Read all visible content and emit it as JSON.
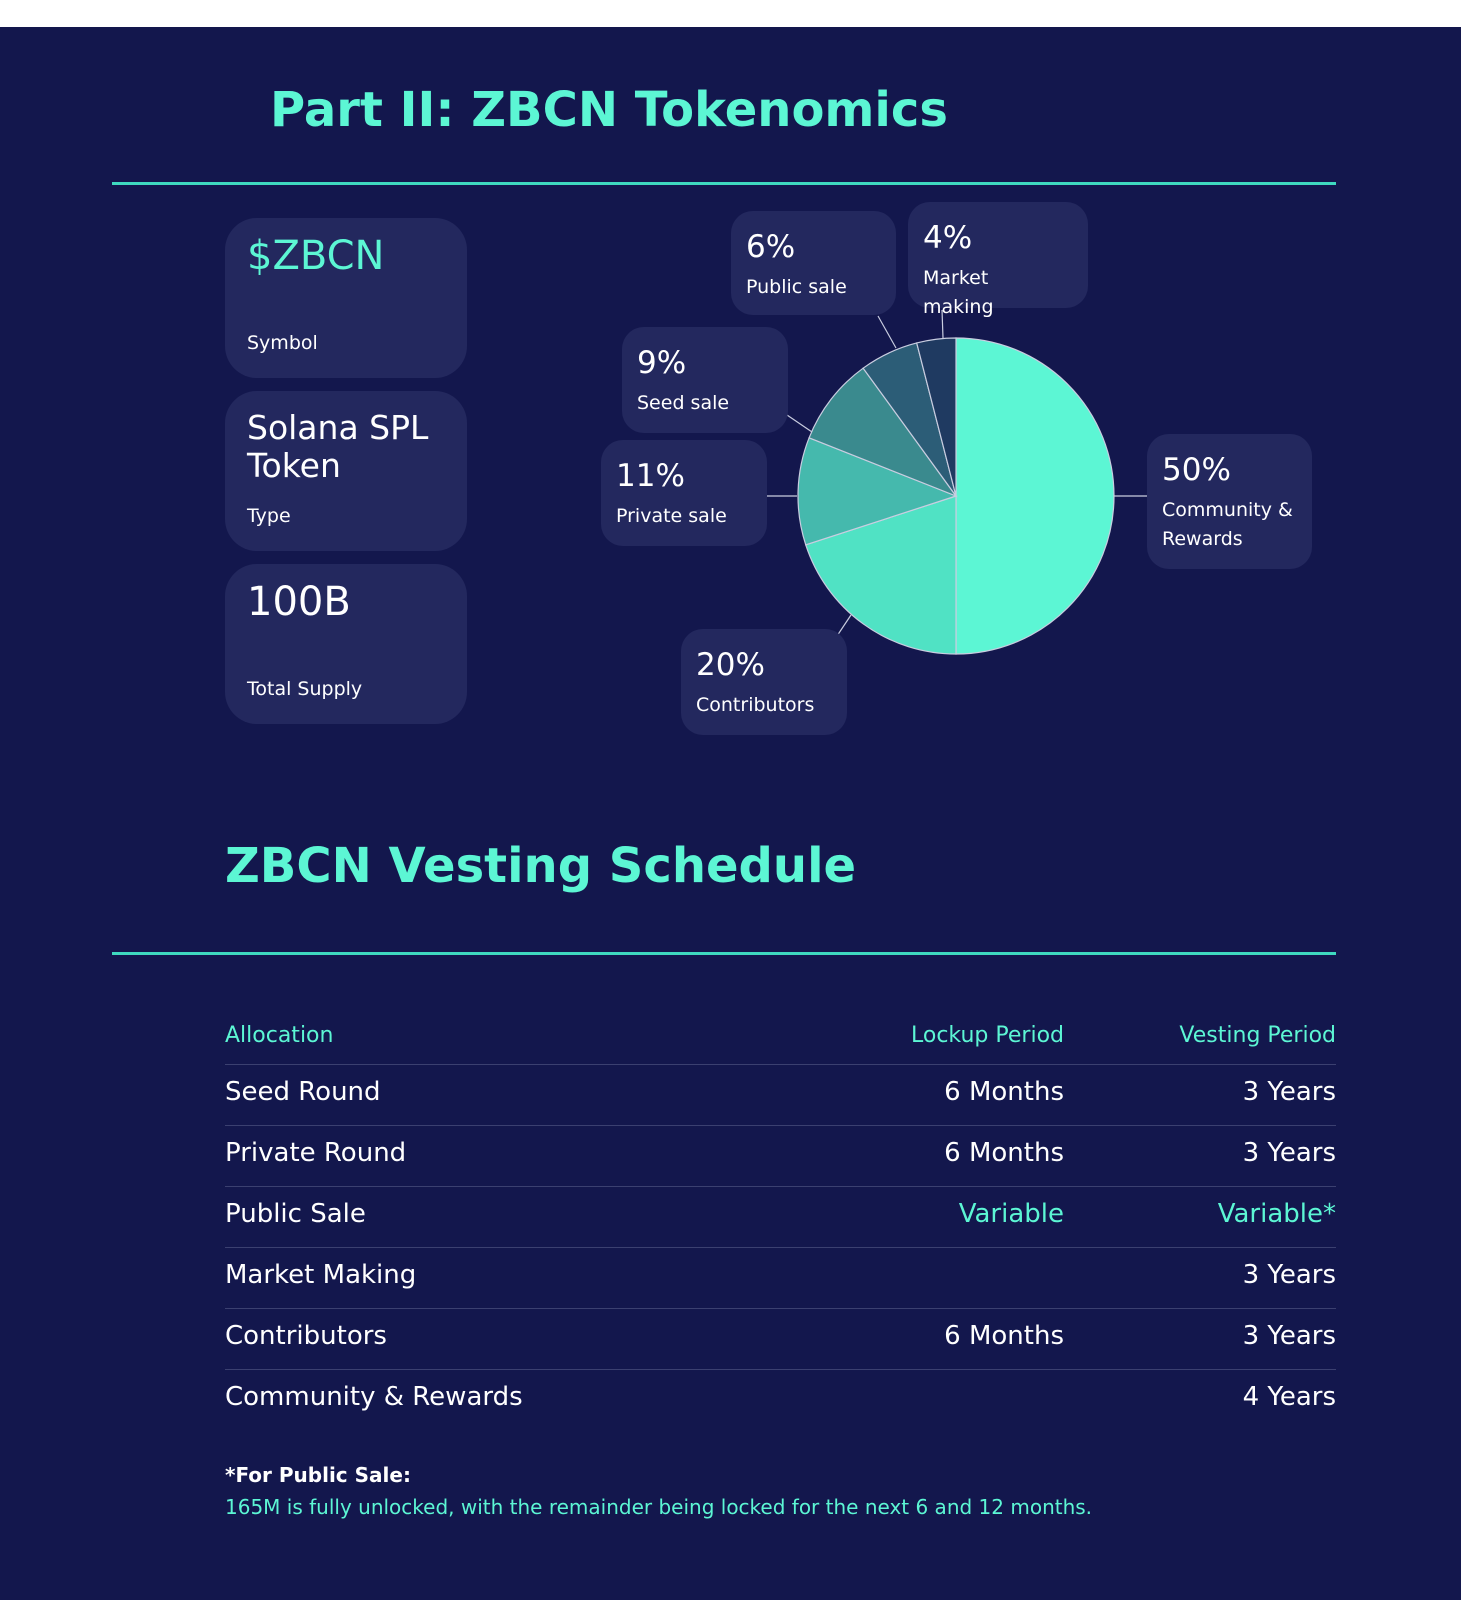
{
  "header": {
    "title": "Part II: ZBCN Tokenomics"
  },
  "facts": [
    {
      "value": "$ZBCN",
      "label": "Symbol"
    },
    {
      "value": "Solana SPL Token",
      "label": "Type"
    },
    {
      "value": "100B",
      "label": "Total Supply"
    }
  ],
  "chart_data": {
    "type": "pie",
    "categories": [
      "Community & Rewards",
      "Contributors",
      "Private sale",
      "Seed sale",
      "Public sale",
      "Market making"
    ],
    "values": [
      50,
      20,
      11,
      9,
      6,
      4
    ],
    "value_labels": [
      "50%",
      "20%",
      "11%",
      "9%",
      "6%",
      "4%"
    ],
    "colors": [
      "#5cf6d4",
      "#50e2c4",
      "#45b9ad",
      "#3a8a8e",
      "#2c5d77",
      "#1f3a61"
    ]
  },
  "vesting": {
    "title": "ZBCN Vesting Schedule",
    "columns": [
      "Allocation",
      "Lockup Period",
      "Vesting Period"
    ],
    "rows": [
      [
        "Seed Round",
        "6 Months",
        "3 Years"
      ],
      [
        "Private Round",
        "6 Months",
        "3 Years"
      ],
      [
        "Public Sale",
        "Variable",
        "Variable*"
      ],
      [
        "Market Making",
        null,
        "3 Years"
      ],
      [
        "Contributors",
        "6 Months",
        "3 Years"
      ],
      [
        "Community & Rewards",
        null,
        "4 Years"
      ]
    ],
    "note_title": "*For Public Sale:",
    "note": "165M is fully unlocked, with the remainder being locked for the next 6 and 12 months."
  }
}
